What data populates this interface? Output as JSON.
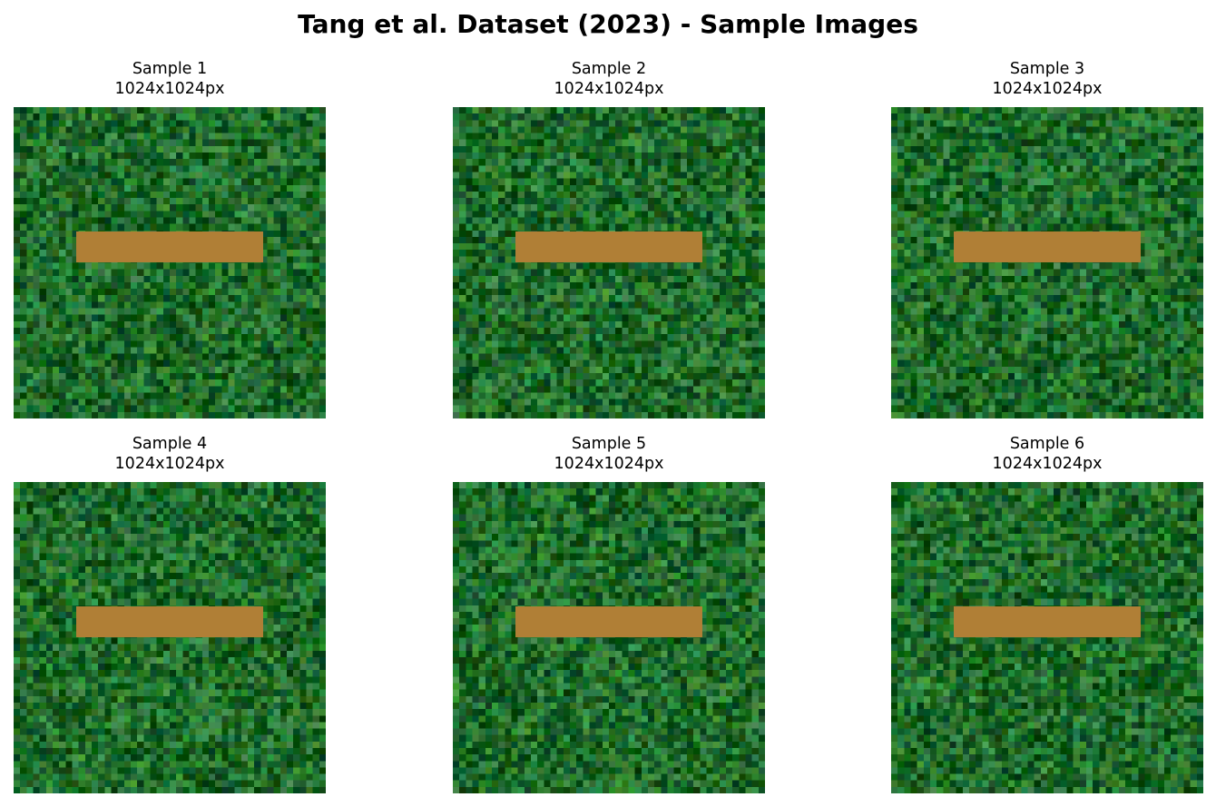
{
  "title": "Tang et al. Dataset (2023) - Sample Images",
  "colors": {
    "bar": "#b07f36",
    "grass_base": "#1f6b2a"
  },
  "samples": [
    {
      "label": "Sample 1",
      "size": "1024x1024px"
    },
    {
      "label": "Sample 2",
      "size": "1024x1024px"
    },
    {
      "label": "Sample 3",
      "size": "1024x1024px"
    },
    {
      "label": "Sample 4",
      "size": "1024x1024px"
    },
    {
      "label": "Sample 5",
      "size": "1024x1024px"
    },
    {
      "label": "Sample 6",
      "size": "1024x1024px"
    }
  ]
}
